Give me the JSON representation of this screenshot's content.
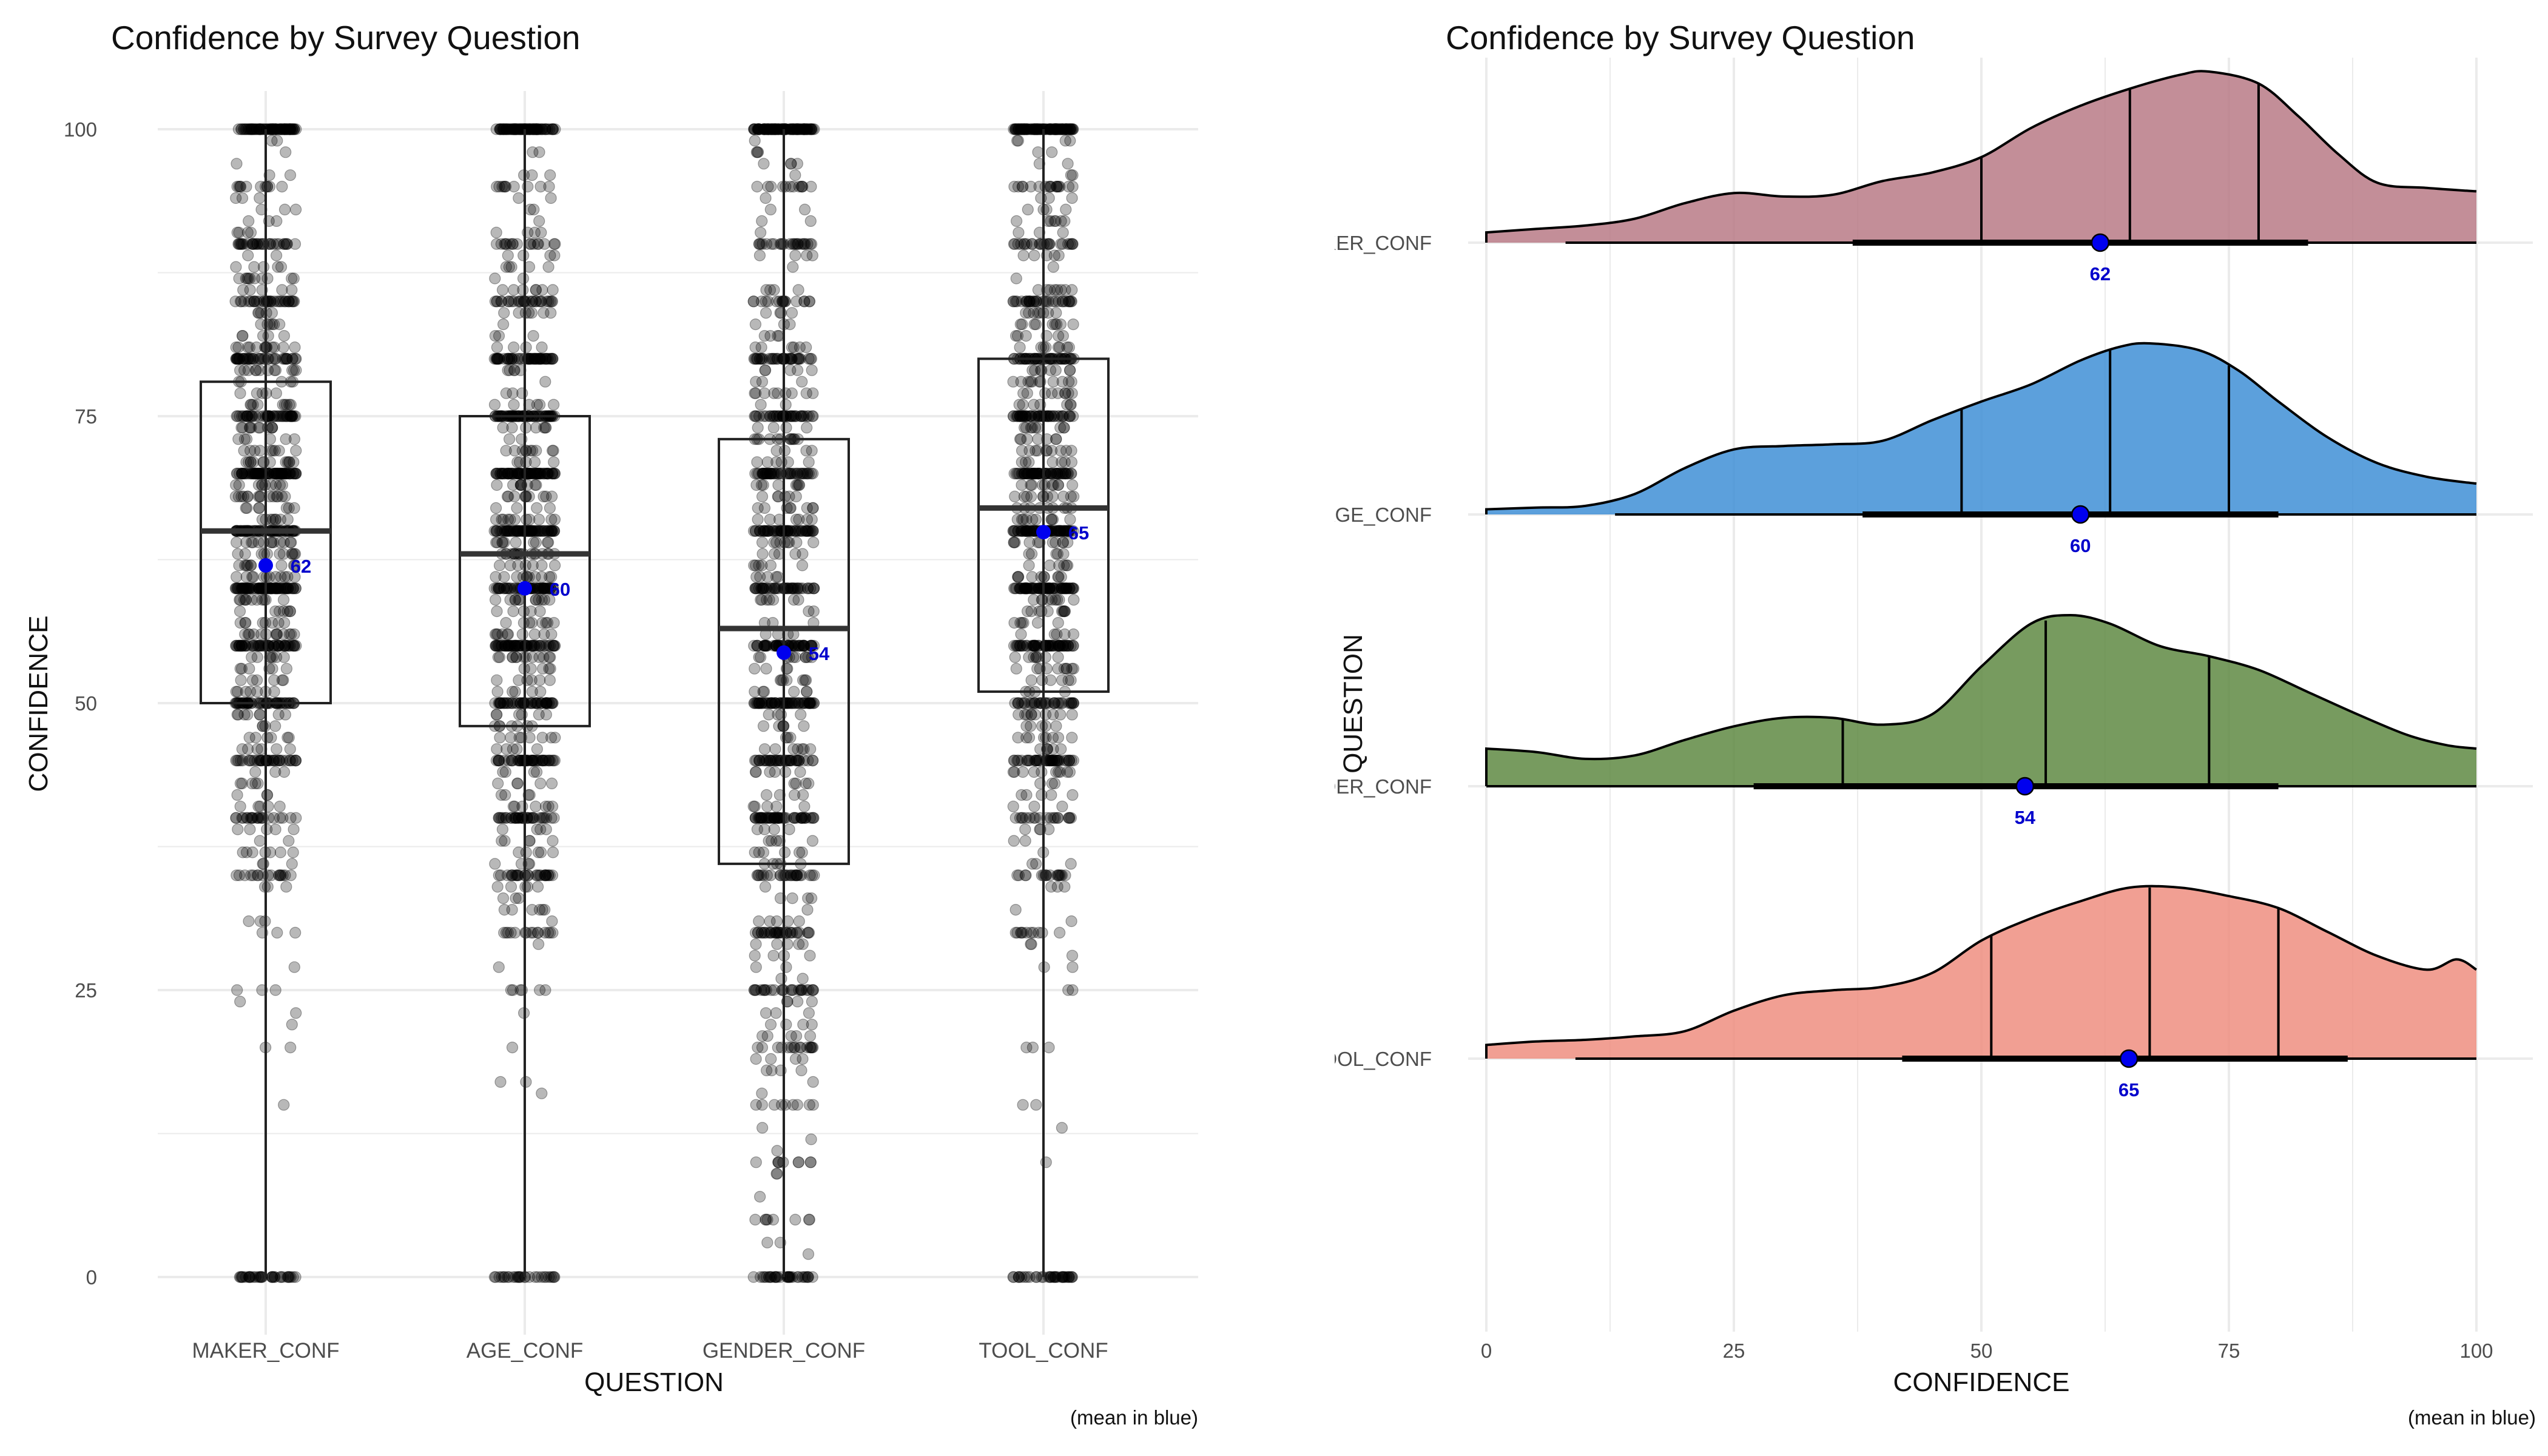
{
  "caption": "(mean in blue)",
  "chart_data": [
    {
      "type": "box",
      "title": "Confidence by Survey Question",
      "xlabel": "QUESTION",
      "ylabel": "CONFIDENCE",
      "ylim": [
        0,
        100
      ],
      "yticks": [
        0,
        25,
        50,
        75,
        100
      ],
      "categories": [
        "MAKER_CONF",
        "AGE_CONF",
        "GENDER_CONF",
        "TOOL_CONF"
      ],
      "boxes": [
        {
          "q1": 50,
          "median": 65,
          "q3": 78,
          "min": 0,
          "max": 100,
          "mean": 62,
          "mean_label": "62"
        },
        {
          "q1": 48,
          "median": 63,
          "q3": 75,
          "min": 0,
          "max": 100,
          "mean": 60,
          "mean_label": "60"
        },
        {
          "q1": 36,
          "median": 56.5,
          "q3": 73,
          "min": 0,
          "max": 100,
          "mean": 54.4,
          "mean_label": "54"
        },
        {
          "q1": 51,
          "median": 67,
          "q3": 80,
          "min": 0,
          "max": 100,
          "mean": 64.9,
          "mean_label": "65"
        }
      ],
      "points": "jittered raw responses, semi-transparent black",
      "mean_color": "#0000ee",
      "grid": true
    },
    {
      "type": "ridgeline",
      "title": "Confidence by Survey Question",
      "xlabel": "CONFIDENCE",
      "ylabel": "QUESTION",
      "xlim": [
        0,
        100
      ],
      "xticks": [
        0,
        25,
        50,
        75,
        100
      ],
      "grid": true,
      "series": [
        {
          "name": "MAKER_CONF",
          "color": "#b97a86",
          "quartiles": [
            50,
            65,
            78
          ],
          "mean": 62,
          "mean_label": "62",
          "interval_thin": [
            8,
            100
          ],
          "interval_thick": [
            37,
            83
          ],
          "density": [
            [
              0,
              0.06
            ],
            [
              5,
              0.08
            ],
            [
              10,
              0.1
            ],
            [
              15,
              0.14
            ],
            [
              20,
              0.23
            ],
            [
              25,
              0.29
            ],
            [
              30,
              0.27
            ],
            [
              35,
              0.28
            ],
            [
              40,
              0.36
            ],
            [
              45,
              0.41
            ],
            [
              50,
              0.5
            ],
            [
              55,
              0.67
            ],
            [
              60,
              0.8
            ],
            [
              65,
              0.9
            ],
            [
              70,
              0.98
            ],
            [
              73,
              1.0
            ],
            [
              78,
              0.93
            ],
            [
              82,
              0.74
            ],
            [
              86,
              0.52
            ],
            [
              90,
              0.35
            ],
            [
              95,
              0.32
            ],
            [
              100,
              0.3
            ]
          ]
        },
        {
          "name": "AGE_CONF",
          "color": "#3f8fd6",
          "quartiles": [
            48,
            63,
            75
          ],
          "mean": 60,
          "mean_label": "60",
          "interval_thin": [
            13,
            100
          ],
          "interval_thick": [
            38,
            80
          ],
          "density": [
            [
              0,
              0.03
            ],
            [
              5,
              0.04
            ],
            [
              10,
              0.05
            ],
            [
              15,
              0.12
            ],
            [
              20,
              0.27
            ],
            [
              25,
              0.38
            ],
            [
              30,
              0.4
            ],
            [
              35,
              0.41
            ],
            [
              40,
              0.43
            ],
            [
              45,
              0.55
            ],
            [
              50,
              0.66
            ],
            [
              55,
              0.76
            ],
            [
              60,
              0.9
            ],
            [
              64,
              0.98
            ],
            [
              67,
              1.0
            ],
            [
              72,
              0.96
            ],
            [
              76,
              0.84
            ],
            [
              80,
              0.66
            ],
            [
              85,
              0.45
            ],
            [
              90,
              0.3
            ],
            [
              95,
              0.22
            ],
            [
              100,
              0.18
            ]
          ]
        },
        {
          "name": "GENDER_CONF",
          "color": "#5f8a43",
          "quartiles": [
            36,
            56.5,
            73
          ],
          "mean": 54.4,
          "mean_label": "54",
          "interval_thin": [
            0,
            100
          ],
          "interval_thick": [
            27,
            80
          ],
          "density": [
            [
              0,
              0.22
            ],
            [
              5,
              0.2
            ],
            [
              10,
              0.16
            ],
            [
              15,
              0.18
            ],
            [
              20,
              0.27
            ],
            [
              25,
              0.35
            ],
            [
              30,
              0.4
            ],
            [
              35,
              0.4
            ],
            [
              40,
              0.36
            ],
            [
              45,
              0.42
            ],
            [
              50,
              0.7
            ],
            [
              55,
              0.95
            ],
            [
              59,
              1.0
            ],
            [
              63,
              0.95
            ],
            [
              68,
              0.82
            ],
            [
              73,
              0.76
            ],
            [
              78,
              0.68
            ],
            [
              83,
              0.55
            ],
            [
              88,
              0.42
            ],
            [
              93,
              0.3
            ],
            [
              97,
              0.24
            ],
            [
              100,
              0.22
            ]
          ]
        },
        {
          "name": "TOOL_CONF",
          "color": "#ef8e80",
          "quartiles": [
            51,
            67,
            80
          ],
          "mean": 64.9,
          "mean_label": "65",
          "interval_thin": [
            9,
            100
          ],
          "interval_thick": [
            42,
            87
          ],
          "density": [
            [
              0,
              0.08
            ],
            [
              5,
              0.1
            ],
            [
              10,
              0.11
            ],
            [
              15,
              0.13
            ],
            [
              20,
              0.16
            ],
            [
              25,
              0.28
            ],
            [
              30,
              0.37
            ],
            [
              35,
              0.4
            ],
            [
              40,
              0.42
            ],
            [
              45,
              0.5
            ],
            [
              50,
              0.69
            ],
            [
              55,
              0.82
            ],
            [
              60,
              0.92
            ],
            [
              65,
              1.0
            ],
            [
              70,
              1.0
            ],
            [
              75,
              0.95
            ],
            [
              80,
              0.88
            ],
            [
              85,
              0.74
            ],
            [
              90,
              0.6
            ],
            [
              95,
              0.52
            ],
            [
              98,
              0.58
            ],
            [
              100,
              0.52
            ]
          ]
        }
      ]
    }
  ]
}
